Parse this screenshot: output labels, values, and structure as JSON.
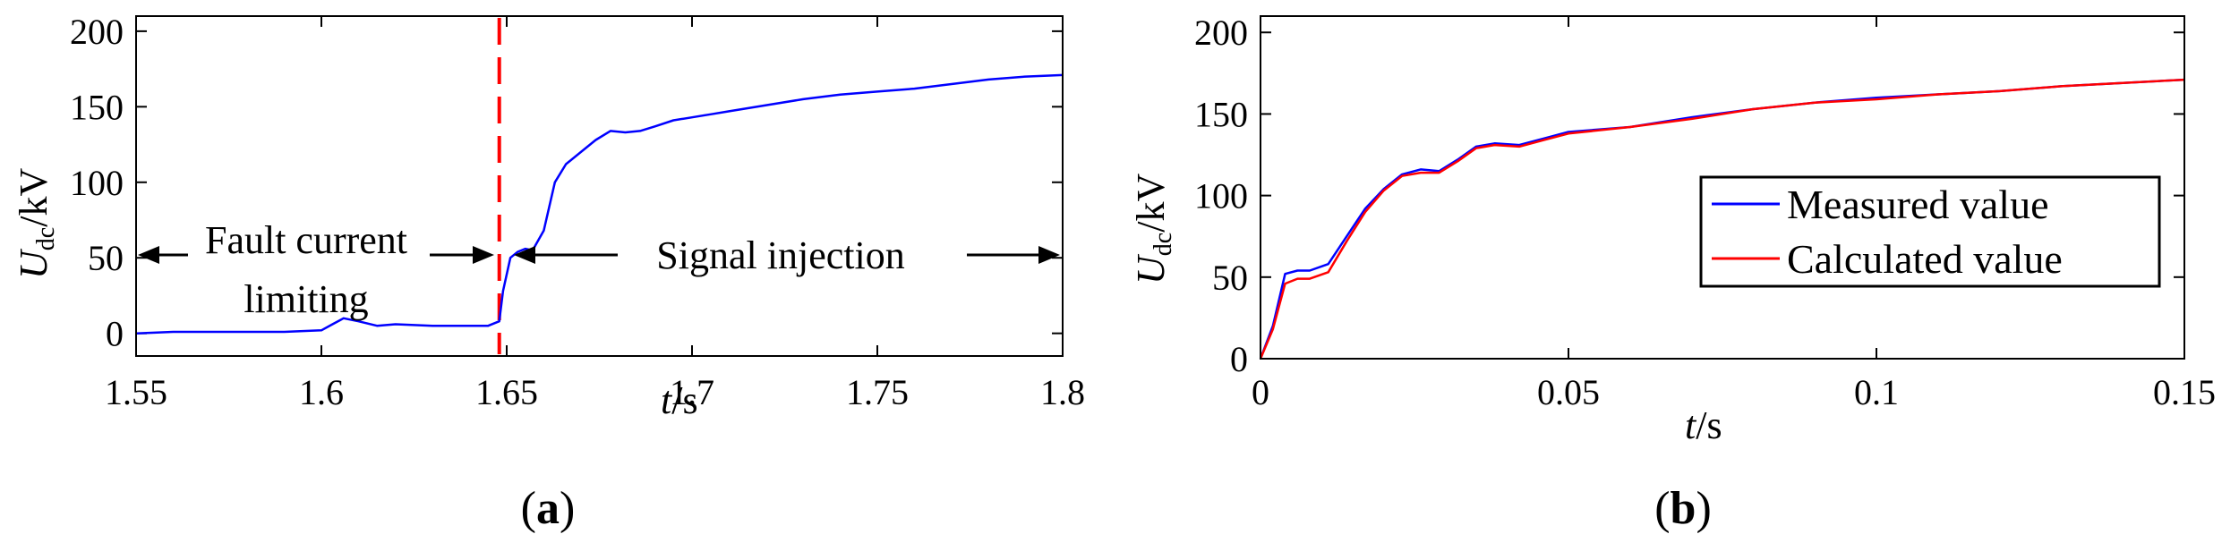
{
  "chart_data": [
    {
      "type": "line",
      "panel_label": "(a)",
      "panel_letter": "a",
      "xlabel_var": "t",
      "xlabel_unit": "/s",
      "ylabel_var": "U",
      "ylabel_sub": "dc",
      "ylabel_unit": "/kV",
      "xlim": [
        1.55,
        1.8
      ],
      "ylim": [
        -15,
        210
      ],
      "xticks": [
        1.55,
        1.6,
        1.65,
        1.7,
        1.75,
        1.8
      ],
      "xtick_labels": [
        "1.55",
        "1.6",
        "1.65",
        "1.7",
        "1.75",
        "1.8"
      ],
      "yticks": [
        0,
        50,
        100,
        150,
        200
      ],
      "ytick_labels": [
        "0",
        "50",
        "100",
        "150",
        "200"
      ],
      "fault_marker_t": 1.648,
      "annotations": {
        "left_line1": "Fault current",
        "left_line2": "limiting",
        "right": "Signal injection"
      },
      "series": [
        {
          "name": "Udc",
          "color": "#0000ff",
          "x": [
            1.55,
            1.56,
            1.57,
            1.58,
            1.59,
            1.6,
            1.603,
            1.606,
            1.61,
            1.615,
            1.62,
            1.63,
            1.64,
            1.645,
            1.648,
            1.649,
            1.651,
            1.653,
            1.655,
            1.657,
            1.66,
            1.663,
            1.666,
            1.67,
            1.674,
            1.678,
            1.682,
            1.686,
            1.69,
            1.695,
            1.7,
            1.705,
            1.71,
            1.715,
            1.72,
            1.73,
            1.74,
            1.75,
            1.76,
            1.77,
            1.78,
            1.79,
            1.8
          ],
          "y": [
            0,
            1,
            1,
            1,
            1,
            2,
            6,
            10,
            8,
            5,
            6,
            5,
            5,
            5,
            8,
            28,
            50,
            54,
            56,
            55,
            68,
            100,
            112,
            120,
            128,
            134,
            133,
            134,
            137,
            141,
            143,
            145,
            147,
            149,
            151,
            155,
            158,
            160,
            162,
            165,
            168,
            170,
            171
          ]
        }
      ]
    },
    {
      "type": "line",
      "panel_label": "(b)",
      "panel_letter": "b",
      "xlabel_var": "t",
      "xlabel_unit": "/s",
      "ylabel_var": "U",
      "ylabel_sub": "dc",
      "ylabel_unit": "/kV",
      "xlim": [
        0,
        0.15
      ],
      "ylim": [
        0,
        210
      ],
      "xticks": [
        0,
        0.05,
        0.1,
        0.15
      ],
      "xtick_labels": [
        "0",
        "0.05",
        "0.1",
        "0.15"
      ],
      "yticks": [
        0,
        50,
        100,
        150,
        200
      ],
      "ytick_labels": [
        "0",
        "50",
        "100",
        "150",
        "200"
      ],
      "legend_position": "center-right",
      "series": [
        {
          "name": "Measured value",
          "color": "#0000ff",
          "x": [
            0,
            0.002,
            0.004,
            0.006,
            0.008,
            0.011,
            0.014,
            0.017,
            0.02,
            0.023,
            0.026,
            0.029,
            0.032,
            0.035,
            0.038,
            0.042,
            0.046,
            0.05,
            0.06,
            0.07,
            0.08,
            0.09,
            0.1,
            0.11,
            0.12,
            0.13,
            0.14,
            0.15
          ],
          "y": [
            0,
            20,
            52,
            54,
            54,
            58,
            75,
            92,
            104,
            113,
            116,
            115,
            122,
            130,
            132,
            131,
            135,
            139,
            142,
            148,
            153,
            157,
            160,
            162,
            164,
            167,
            169,
            171
          ]
        },
        {
          "name": "Calculated value",
          "color": "#ff0000",
          "x": [
            0,
            0.002,
            0.004,
            0.006,
            0.008,
            0.011,
            0.014,
            0.017,
            0.02,
            0.023,
            0.026,
            0.029,
            0.032,
            0.035,
            0.038,
            0.042,
            0.046,
            0.05,
            0.06,
            0.07,
            0.08,
            0.09,
            0.1,
            0.11,
            0.12,
            0.13,
            0.14,
            0.15
          ],
          "y": [
            0,
            18,
            46,
            49,
            49,
            53,
            72,
            90,
            103,
            112,
            114,
            114,
            121,
            129,
            131,
            130,
            134,
            138,
            142,
            147,
            153,
            157,
            159,
            162,
            164,
            167,
            169,
            171
          ]
        }
      ]
    }
  ]
}
